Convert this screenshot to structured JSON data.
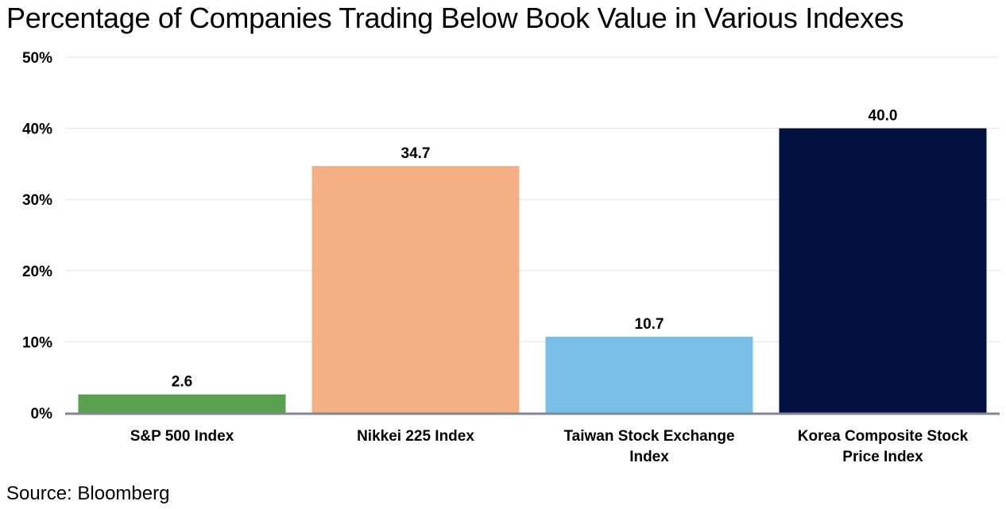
{
  "chart_data": {
    "type": "bar",
    "title": "Percentage of Companies Trading Below Book Value in Various Indexes",
    "categories": [
      [
        "S&P 500 Index"
      ],
      [
        "Nikkei 225 Index"
      ],
      [
        "Taiwan Stock Exchange",
        "Index"
      ],
      [
        "Korea Composite Stock",
        "Price Index"
      ]
    ],
    "values": [
      2.6,
      34.7,
      10.7,
      40.0
    ],
    "value_labels": [
      "2.6",
      "34.7",
      "10.7",
      "40.0"
    ],
    "colors": [
      "#59a14f",
      "#f4b085",
      "#78c0e5",
      "#02113f"
    ],
    "ylim": [
      0,
      50
    ],
    "yticks": [
      0,
      10,
      20,
      30,
      40,
      50
    ],
    "ytick_labels": [
      "0%",
      "10%",
      "20%",
      "30%",
      "40%",
      "50%"
    ],
    "xlabel": "",
    "ylabel": "",
    "grid": true,
    "source": "Source: Bloomberg"
  }
}
